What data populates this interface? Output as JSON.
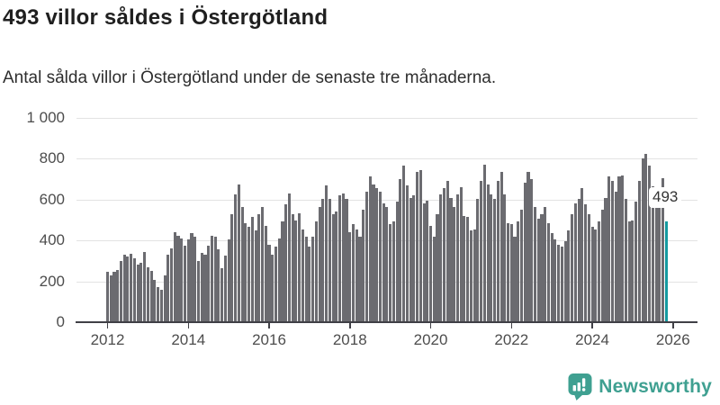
{
  "chart_data": {
    "type": "bar",
    "title": "493 villor såldes i Östergötland",
    "subtitle": "Antal sålda villor i Östergötland under de senaste tre månaderna.",
    "annotation_label": "493",
    "start_month": "2012-01",
    "end_month": "2025-11",
    "freq": "monthly",
    "ylim": [
      0,
      1000
    ],
    "ytick_interval": 200,
    "ytick_labels": [
      "0",
      "200",
      "400",
      "600",
      "800",
      "1 000"
    ],
    "xtick_years": [
      2012,
      2014,
      2016,
      2018,
      2020,
      2022,
      2024,
      2026
    ],
    "grid": "horizontal",
    "legend": "none",
    "highlight_last": true,
    "last_value": 493,
    "values": [
      245,
      230,
      245,
      255,
      300,
      330,
      320,
      335,
      315,
      280,
      290,
      345,
      270,
      250,
      205,
      170,
      160,
      230,
      330,
      360,
      440,
      425,
      410,
      375,
      405,
      435,
      420,
      300,
      340,
      330,
      375,
      425,
      420,
      355,
      265,
      325,
      405,
      530,
      625,
      675,
      565,
      485,
      465,
      515,
      450,
      530,
      565,
      470,
      380,
      330,
      370,
      410,
      495,
      575,
      630,
      530,
      500,
      535,
      455,
      420,
      370,
      420,
      495,
      565,
      605,
      670,
      605,
      530,
      540,
      620,
      630,
      605,
      440,
      480,
      455,
      420,
      550,
      640,
      715,
      675,
      655,
      640,
      580,
      565,
      480,
      495,
      590,
      700,
      765,
      670,
      610,
      620,
      735,
      745,
      580,
      595,
      470,
      420,
      530,
      625,
      655,
      690,
      610,
      565,
      625,
      660,
      520,
      515,
      450,
      455,
      605,
      690,
      770,
      675,
      625,
      605,
      690,
      735,
      625,
      485,
      480,
      420,
      495,
      550,
      685,
      735,
      700,
      565,
      505,
      530,
      565,
      485,
      435,
      405,
      380,
      370,
      395,
      450,
      530,
      580,
      605,
      655,
      575,
      530,
      465,
      455,
      495,
      550,
      610,
      715,
      690,
      640,
      715,
      720,
      605,
      495,
      500,
      590,
      690,
      800,
      825,
      765,
      665,
      625,
      655,
      705,
      493
    ]
  },
  "colors": {
    "bar": "#6b6b70",
    "highlight": "#149aa0",
    "grid": "#e3e3e3",
    "axis": "#404046",
    "tick_text": "#4d4d4d",
    "annotation_text": "#333333",
    "brand_teal": "#3fa091"
  },
  "footer": {
    "brand": "Newsworthy"
  }
}
